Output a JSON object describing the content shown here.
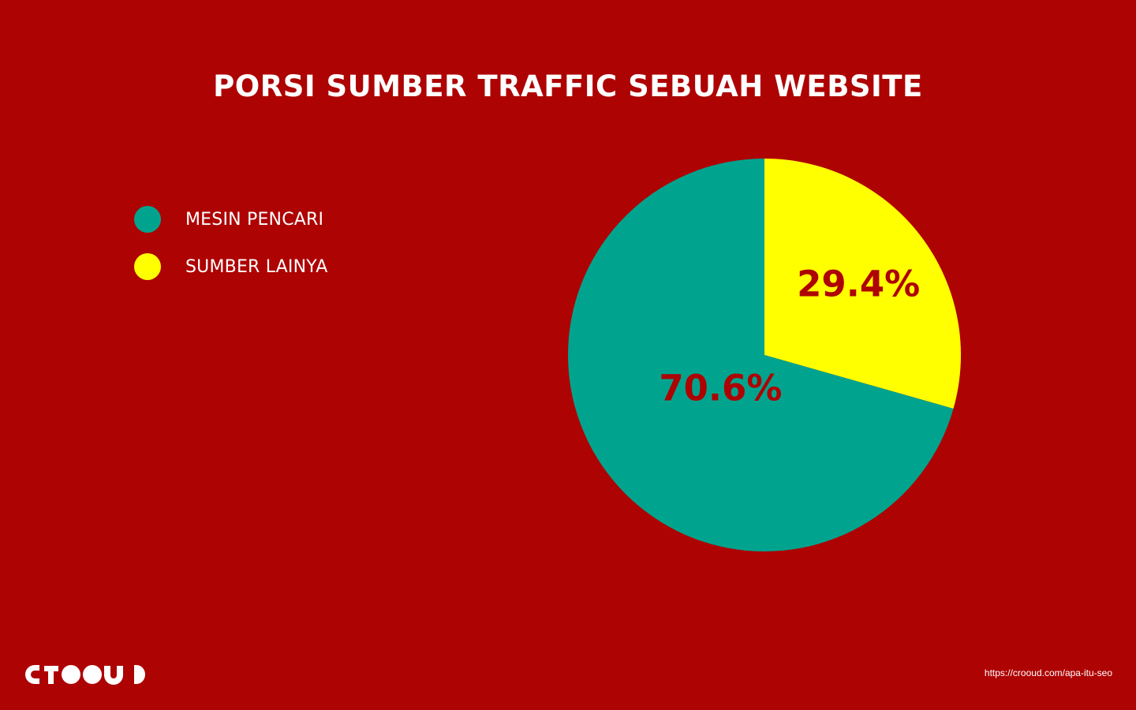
{
  "chart_data": {
    "type": "pie",
    "title": "PORSI SUMBER TRAFFIC SEBUAH WEBSITE",
    "legend_position": "left",
    "slices": [
      {
        "label": "SUMBER LAINYA",
        "value": 29.4,
        "display": "29.4%",
        "color": "#FFFF00"
      },
      {
        "label": "MESIN PENCARI",
        "value": 70.6,
        "display": "70.6%",
        "color": "#00A48E"
      }
    ],
    "slice_label_color": "#AE0303",
    "start": "top",
    "direction": "clockwise"
  },
  "colors": {
    "background": "#AE0303",
    "text": "#FFFFFF"
  },
  "footer": {
    "logo_icon": "crooud-logo-icon",
    "source_url": "https://crooud.com/apa-itu-seo"
  }
}
